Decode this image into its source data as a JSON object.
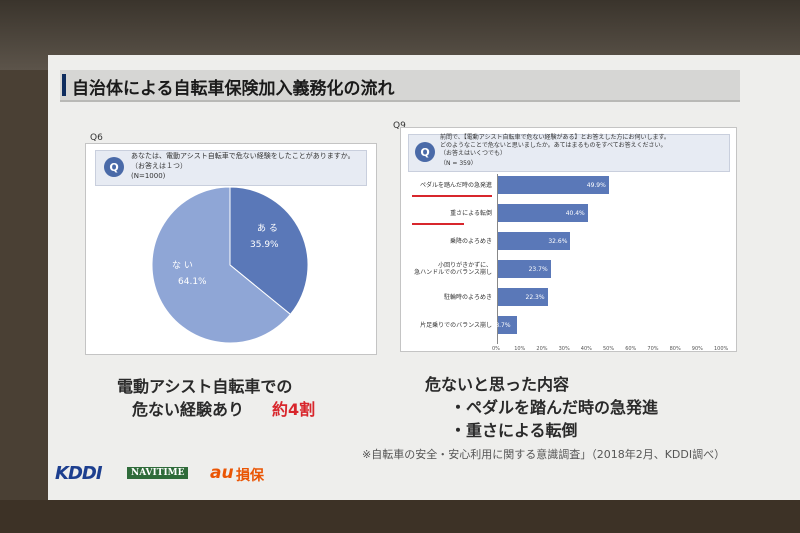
{
  "slide": {
    "title": "自治体による自転車保険加入義務化の流れ",
    "source": "※自転車の安全・安心利用に関する意識調査」（2018年2月、KDDI調べ）"
  },
  "q6": {
    "label": "Q6",
    "badge": "Q",
    "question": "あなたは、電動アシスト自転車で危ない経験をしたことがありますか。",
    "note": "（お答えは１つ）",
    "n": "(N=1000)",
    "pie": [
      {
        "label": "あ る",
        "value": 35.9,
        "value_text": "35.9%",
        "color": "#5a78b8"
      },
      {
        "label": "な い",
        "value": 64.1,
        "value_text": "64.1%",
        "color": "#8fa6d6"
      }
    ]
  },
  "q9": {
    "label": "Q9",
    "badge": "Q",
    "question_line1": "前問で、【電動アシスト自転車で危ない経験がある】とお答えした方にお伺いします。",
    "question_line2": "どのようなことで危ないと思いましたか。あてはまるものをすべてお答えください。",
    "note": "（お答えはいくつでも）",
    "n": "（N = 359）",
    "chart_data": {
      "type": "bar",
      "orientation": "horizontal",
      "categories": [
        "ペダルを踏んだ時の急発進",
        "重さによる転倒",
        "乗降のよろめき",
        "小回りがきかずに、急ハンドルでのバランス崩し",
        "駐輪時のよろめき",
        "片足乗りでのバランス崩し"
      ],
      "category_lines": [
        [
          "ペダルを踏んだ時の急発進"
        ],
        [
          "重さによる転倒"
        ],
        [
          "乗降のよろめき"
        ],
        [
          "小回りがきかずに、",
          "急ハンドルでのバランス崩し"
        ],
        [
          "駐輪時のよろめき"
        ],
        [
          "片足乗りでのバランス崩し"
        ]
      ],
      "values": [
        49.9,
        40.4,
        32.6,
        23.7,
        22.3,
        8.7
      ],
      "value_labels": [
        "49.9%",
        "40.4%",
        "32.6%",
        "23.7%",
        "22.3%",
        "8.7%"
      ],
      "xlim": [
        0,
        100
      ],
      "ticks": [
        "0%",
        "10%",
        "20%",
        "30%",
        "40%",
        "50%",
        "60%",
        "70%",
        "80%",
        "90%",
        "100%"
      ],
      "highlighted": [
        0,
        1
      ],
      "color": "#5a78b8",
      "highlight_color": "#d8262c"
    }
  },
  "left_caption": {
    "line1": "電動アシスト自転車での",
    "line2": "危ない経験あり",
    "emph": "約4割"
  },
  "right_caption": {
    "heading": "危ないと思った内容",
    "item1": "・ペダルを踏んだ時の急発進",
    "item2": "・重さによる転倒"
  },
  "logos": {
    "kddi": "KDDI",
    "navitime": "NAVITIME",
    "au_mark": "au",
    "au_text": "損保"
  }
}
